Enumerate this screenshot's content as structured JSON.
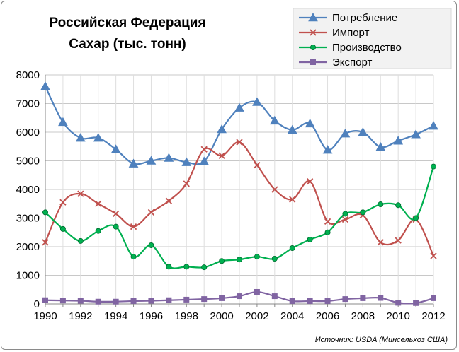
{
  "chart_data": {
    "type": "line",
    "title": "Российская Федерация",
    "subtitle": "Сахар  (тыс. тонн)",
    "source": "Источник:  USDA (Минсельхоз США)",
    "xlabel": "",
    "ylabel": "",
    "xlim": [
      1990,
      2012
    ],
    "ylim": [
      0,
      8000
    ],
    "y_ticks": [
      0,
      1000,
      2000,
      3000,
      4000,
      5000,
      6000,
      7000,
      8000
    ],
    "x_ticks": [
      1990,
      1992,
      1994,
      1996,
      1998,
      2000,
      2002,
      2004,
      2006,
      2008,
      2010,
      2012
    ],
    "grid": true,
    "legend": "top-right",
    "x": [
      1990,
      1991,
      1992,
      1993,
      1994,
      1995,
      1996,
      1997,
      1998,
      1999,
      2000,
      2001,
      2002,
      2003,
      2004,
      2005,
      2006,
      2007,
      2008,
      2009,
      2010,
      2011,
      2012
    ],
    "series": [
      {
        "name": "Потребление",
        "color": "#4f81bd",
        "marker": "triangle",
        "values": [
          7600,
          6350,
          5800,
          5800,
          5400,
          4900,
          5000,
          5100,
          4950,
          4980,
          6100,
          6850,
          7050,
          6400,
          6080,
          6300,
          5380,
          5950,
          6000,
          5480,
          5700,
          5920,
          6220
        ]
      },
      {
        "name": "Импорт",
        "color": "#c0504d",
        "marker": "x",
        "values": [
          2150,
          3550,
          3850,
          3500,
          3150,
          2700,
          3200,
          3600,
          4200,
          5400,
          5180,
          5650,
          4850,
          4000,
          3650,
          4280,
          2880,
          2950,
          3100,
          2150,
          2220,
          2950,
          1680
        ]
      },
      {
        "name": "Производство",
        "color": "#00b050",
        "marker": "circle",
        "values": [
          3200,
          2620,
          2200,
          2550,
          2700,
          1650,
          2050,
          1300,
          1300,
          1280,
          1500,
          1550,
          1650,
          1580,
          1950,
          2250,
          2500,
          3150,
          3200,
          3480,
          3450,
          3000,
          4800
        ]
      },
      {
        "name": "Экспорт",
        "color": "#8064a2",
        "marker": "square",
        "values": [
          130,
          120,
          110,
          80,
          80,
          100,
          110,
          130,
          150,
          170,
          200,
          270,
          420,
          270,
          100,
          100,
          100,
          170,
          200,
          210,
          40,
          30,
          200
        ]
      }
    ]
  }
}
